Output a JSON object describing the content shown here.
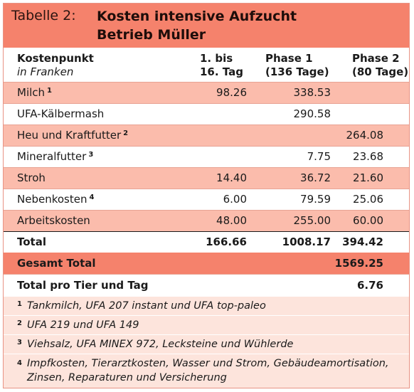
{
  "title": {
    "prefix": "Tabelle 2:",
    "line1": "Kosten intensive Aufzucht",
    "line2": "Betrieb Müller"
  },
  "header": {
    "col1": "Kostenpunkt",
    "col1_sub": "in Franken",
    "col2_line1": "1. bis",
    "col2_line2": "16. Tag",
    "col3_line1": "Phase 1",
    "col3_line2": "(136 Tage)",
    "col4_line1": "Phase 2",
    "col4_line2": "(80 Tage)"
  },
  "rows": [
    {
      "label": "Milch",
      "fn": "1",
      "v1": "98.26",
      "v2": "338.53",
      "v3": ""
    },
    {
      "label": "UFA-Kälbermash",
      "fn": "",
      "v1": "",
      "v2": "290.58",
      "v3": ""
    },
    {
      "label": "Heu und Kraftfutter",
      "fn": "2",
      "v1": "",
      "v2": "",
      "v3": "264.08"
    },
    {
      "label": "Mineralfutter",
      "fn": "3",
      "v1": "",
      "v2": "7.75",
      "v3": "23.68"
    },
    {
      "label": "Stroh",
      "fn": "",
      "v1": "14.40",
      "v2": "36.72",
      "v3": "21.60"
    },
    {
      "label": "Nebenkosten",
      "fn": "4",
      "v1": "6.00",
      "v2": "79.59",
      "v3": "25.06"
    },
    {
      "label": "Arbeitskosten",
      "fn": "",
      "v1": "48.00",
      "v2": "255.00",
      "v3": "60.00"
    }
  ],
  "total": {
    "label": "Total",
    "v1": "166.66",
    "v2": "1008.17",
    "v3": "394.42"
  },
  "gesamt": {
    "label": "Gesamt Total",
    "value": "1569.25"
  },
  "pro_tier": {
    "label": "Total pro Tier und Tag",
    "value": "6.76"
  },
  "footnotes": [
    {
      "num": "1",
      "text": "Tankmilch, UFA 207 instant und UFA top-paleo"
    },
    {
      "num": "2",
      "text": "UFA 219 und UFA 149"
    },
    {
      "num": "3",
      "text": "Viehsalz, UFA MINEX 972, Lecksteine und Wühlerde"
    },
    {
      "num": "4",
      "text_line1": "Impfkosten, Tierarztkosten, Wasser und Strom, Gebäudeamortisation,",
      "text_line2": "Zinsen, Reparaturen und Versicherung"
    }
  ],
  "colors": {
    "header_bar": "#f5826c",
    "row_pink": "#fbbcac",
    "footnote_bg": "#fde4dc"
  }
}
